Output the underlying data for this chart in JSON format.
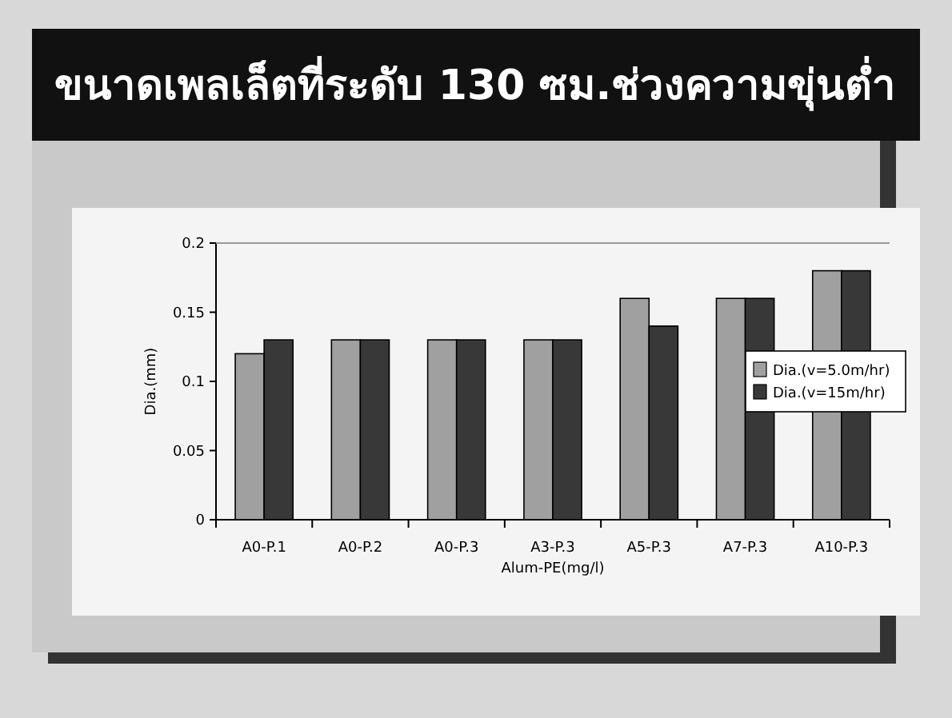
{
  "chart_data": {
    "type": "bar",
    "title": "ขนาดเพลเล็ตที่ระดับ 130 ซม.ช่วงความขุ่นต่ำ",
    "categories": [
      "A0-P.1",
      "A0-P.2",
      "A0-P.3",
      "A3-P.3",
      "A5-P.3",
      "A7-P.3",
      "A10-P.3"
    ],
    "series": [
      {
        "name": "Dia.(v=5.0m/hr)",
        "color": "#a0a0a0",
        "values": [
          0.12,
          0.13,
          0.13,
          0.13,
          0.16,
          0.16,
          0.18
        ]
      },
      {
        "name": "Dia.(v=15m/hr)",
        "color": "#383838",
        "values": [
          0.13,
          0.13,
          0.13,
          0.13,
          0.14,
          0.16,
          0.18
        ]
      }
    ],
    "xlabel": "Alum-PE(mg/l)",
    "ylabel": "Dia.(mm)",
    "ylim": [
      0,
      0.2
    ],
    "yticks": [
      0,
      0.05,
      0.1,
      0.15,
      0.2
    ],
    "legend": "right",
    "grid": false
  }
}
